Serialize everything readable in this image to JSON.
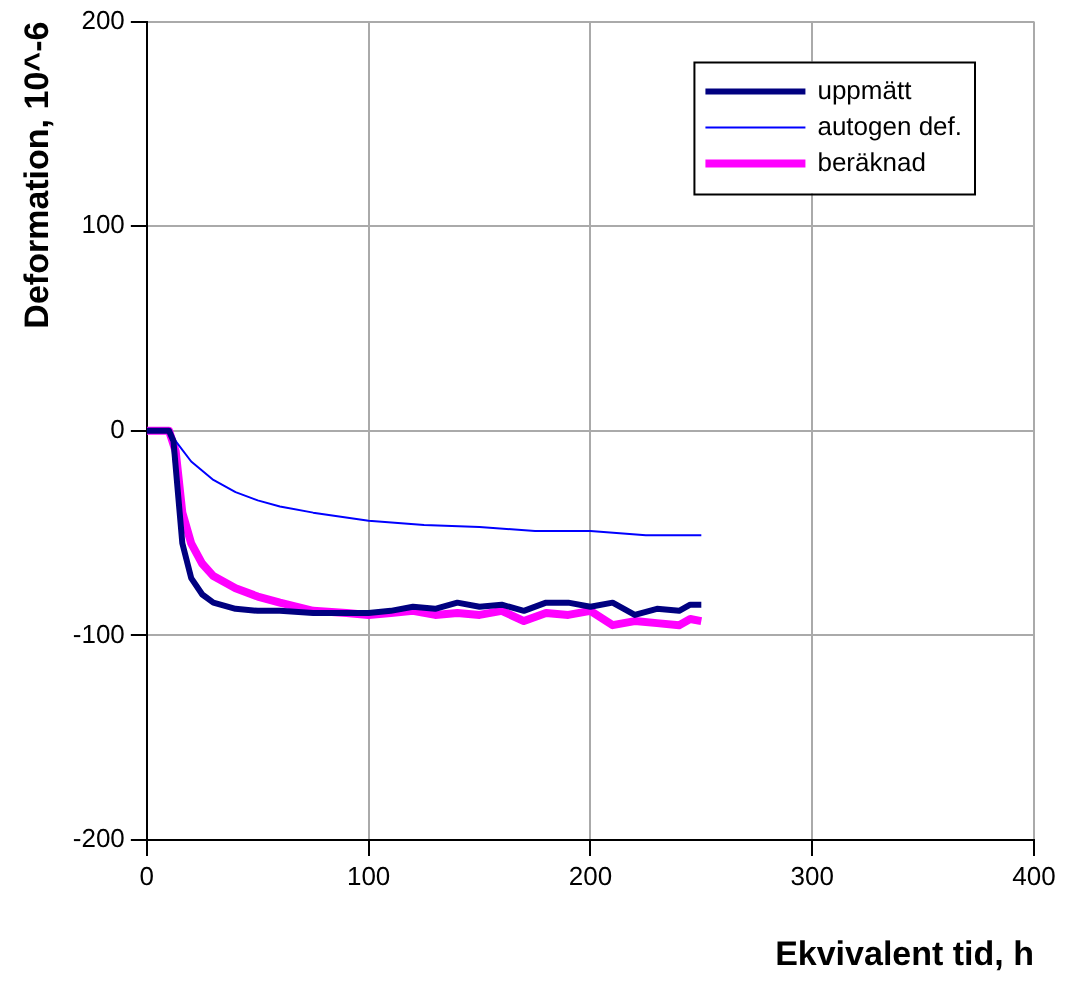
{
  "chart_data": {
    "type": "line",
    "xlabel": "Ekvivalent tid, h",
    "ylabel": "Deformation, 10^-6",
    "xlim": [
      0,
      400
    ],
    "xticks": [
      0,
      100,
      200,
      300,
      400
    ],
    "ylim": [
      -200,
      200
    ],
    "yticks": [
      -200,
      -100,
      0,
      100,
      200
    ],
    "grid": true,
    "legend": "top right",
    "marker": "none",
    "series": [
      {
        "name": "uppmätt",
        "color": "#000080",
        "x": [
          0,
          10,
          12,
          14,
          16,
          20,
          25,
          30,
          40,
          50,
          60,
          75,
          90,
          100,
          110,
          120,
          130,
          140,
          150,
          160,
          170,
          180,
          190,
          200,
          210,
          220,
          230,
          240,
          245,
          250
        ],
        "values": [
          0,
          0,
          -5,
          -30,
          -55,
          -72,
          -80,
          -84,
          -87,
          -88,
          -88,
          -89,
          -89,
          -89,
          -88,
          -86,
          -87,
          -84,
          -86,
          -85,
          -88,
          -84,
          -84,
          -86,
          -84,
          -90,
          -87,
          -88,
          -85,
          -85
        ]
      },
      {
        "name": "autogen def.",
        "color": "#0000ff",
        "x": [
          0,
          10,
          13,
          20,
          30,
          40,
          50,
          60,
          75,
          100,
          125,
          150,
          175,
          200,
          225,
          250
        ],
        "values": [
          0,
          0,
          -5,
          -15,
          -24,
          -30,
          -34,
          -37,
          -40,
          -44,
          -46,
          -47,
          -49,
          -49,
          -51,
          -51
        ]
      },
      {
        "name": "beräknad",
        "color": "#ff00ff",
        "x": [
          0,
          10,
          13,
          16,
          20,
          25,
          30,
          40,
          50,
          60,
          75,
          90,
          100,
          110,
          120,
          130,
          140,
          150,
          160,
          170,
          180,
          190,
          200,
          210,
          220,
          230,
          240,
          245,
          250
        ],
        "values": [
          0,
          0,
          -10,
          -40,
          -55,
          -65,
          -71,
          -77,
          -81,
          -84,
          -88,
          -89,
          -90,
          -89,
          -88,
          -90,
          -89,
          -90,
          -88,
          -93,
          -89,
          -90,
          -88,
          -95,
          -93,
          -94,
          -95,
          -92,
          -93
        ]
      }
    ]
  }
}
